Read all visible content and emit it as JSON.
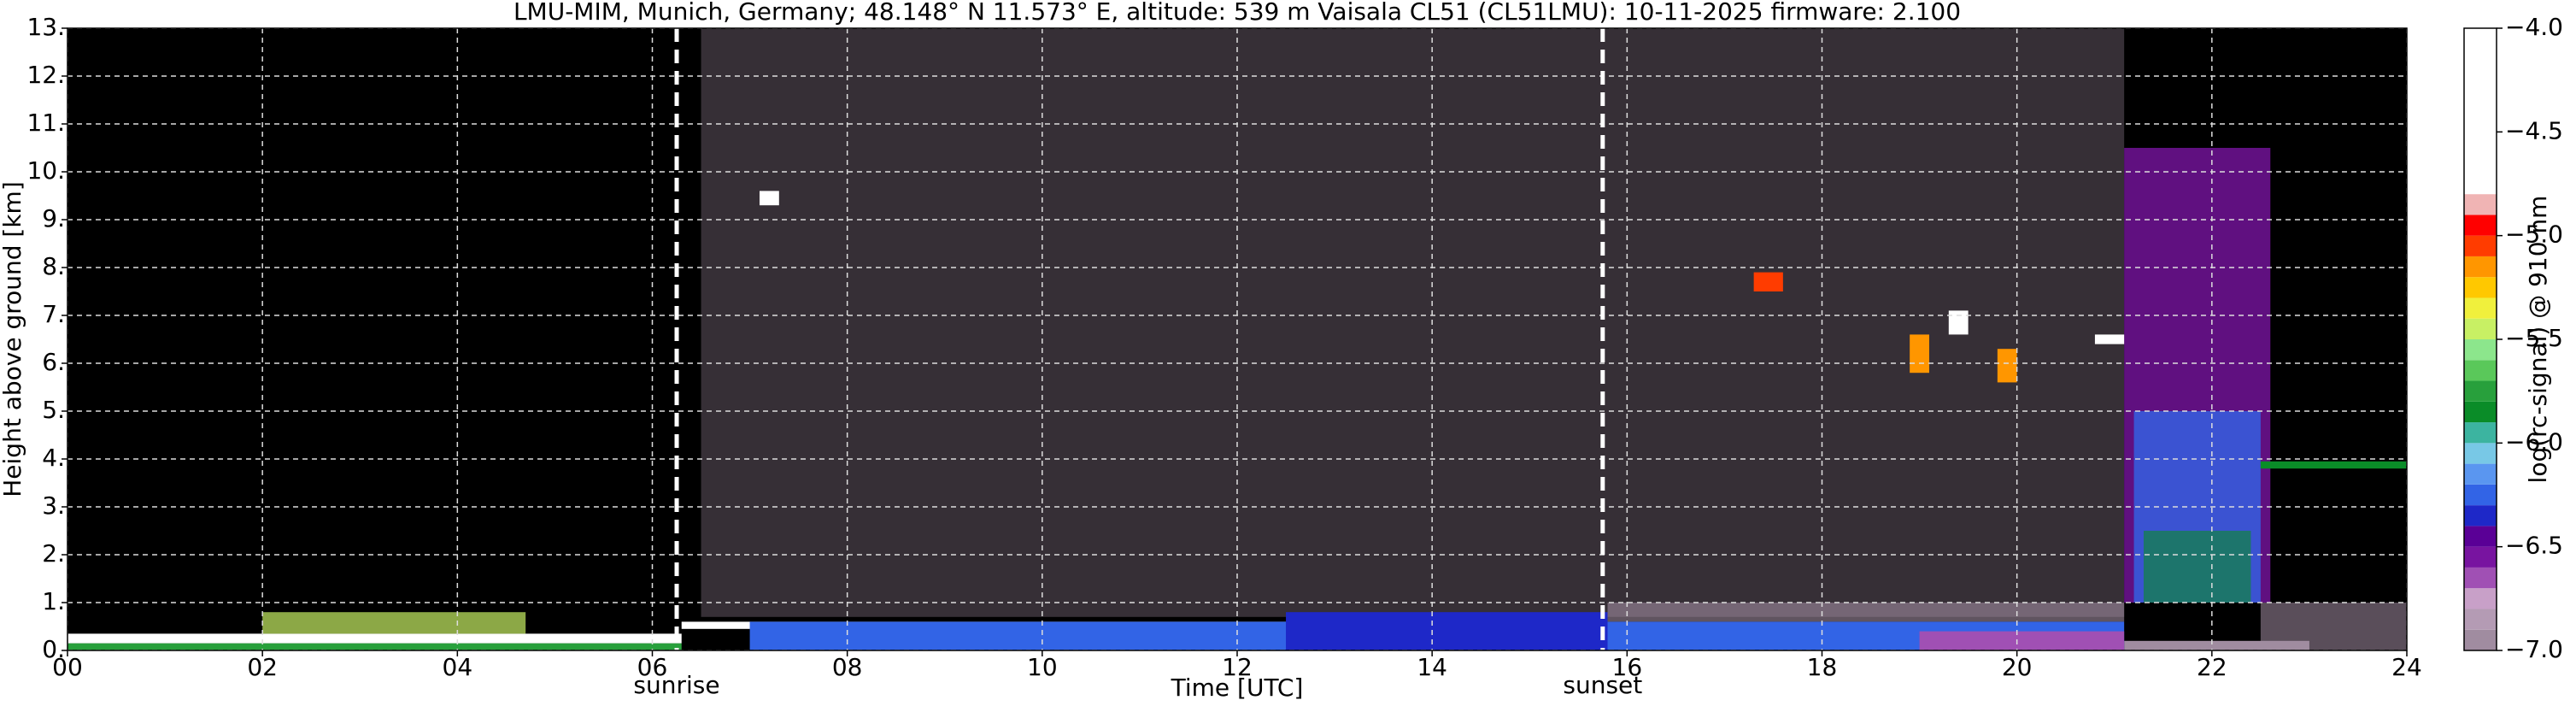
{
  "chart_data": {
    "type": "heatmap",
    "title": "LMU-MIM, Munich, Germany; 48.148° N 11.573° E, altitude: 539 m    Vaisala CL51 (CL51LMU): 10-11-2025    firmware: 2.100",
    "x_label": "Time [UTC]",
    "y_label": "Height above ground [km]",
    "xlim": [
      0,
      24
    ],
    "xticks": [
      {
        "value": 0,
        "label": "00"
      },
      {
        "value": 2,
        "label": "02"
      },
      {
        "value": 4,
        "label": "04"
      },
      {
        "value": 6,
        "label": "06"
      },
      {
        "value": 8,
        "label": "08"
      },
      10,
      12,
      14,
      16,
      18,
      20,
      22,
      24
    ],
    "ylim": [
      0,
      13
    ],
    "yticks": [
      {
        "value": 0,
        "label": "0."
      },
      {
        "value": 1,
        "label": "1."
      },
      {
        "value": 2,
        "label": "2."
      },
      {
        "value": 3,
        "label": "3."
      },
      {
        "value": 4,
        "label": "4."
      },
      {
        "value": 5,
        "label": "5."
      },
      {
        "value": 6,
        "label": "6."
      },
      {
        "value": 7,
        "label": "7."
      },
      {
        "value": 8,
        "label": "8."
      },
      {
        "value": 9,
        "label": "9."
      },
      {
        "value": 10,
        "label": "10."
      },
      {
        "value": 11,
        "label": "11."
      },
      {
        "value": 12,
        "label": "12."
      },
      {
        "value": 13,
        "label": "13."
      }
    ],
    "grid": true,
    "background": "#000000",
    "annotations": [
      {
        "text": "sunrise",
        "x": 6.25
      },
      {
        "text": "sunset",
        "x": 15.75
      }
    ],
    "colorbar": {
      "label": "log(rc-signal) @ 910 nm",
      "clim": [
        -7,
        -4
      ],
      "ticks": [
        {
          "value": -4,
          "label": "−4.0"
        },
        {
          "value": -4.5,
          "label": "−4.5"
        },
        {
          "value": -5,
          "label": "−5.0"
        },
        {
          "value": -5.5,
          "label": "−5.5"
        },
        {
          "value": -6,
          "label": "−6.0"
        },
        {
          "value": -6.5,
          "label": "−6.5"
        },
        {
          "value": -7,
          "label": "−7.0"
        }
      ],
      "levels": [
        -7.0,
        -6.9,
        -6.8,
        -6.7,
        -6.6,
        -6.5,
        -6.4,
        -6.3,
        -6.2,
        -6.1,
        -6.0,
        -5.9,
        -5.8,
        -5.7,
        -5.6,
        -5.5,
        -5.4,
        -5.3,
        -5.2,
        -5.1,
        -5.0,
        -4.9,
        -4.8,
        -4.0
      ],
      "colors": [
        "#a08ca0",
        "#b49bb4",
        "#c8a0c8",
        "#a050b4",
        "#7814a0",
        "#5a0096",
        "#1e28c8",
        "#3264e6",
        "#5a96f0",
        "#78c8e6",
        "#3cb4a0",
        "#0a8c28",
        "#28a03c",
        "#5ac85a",
        "#8ce68c",
        "#c8f064",
        "#f0f03c",
        "#ffc800",
        "#ff9600",
        "#ff3c00",
        "#ff0000",
        "#f0b4b4",
        "#ffffff"
      ]
    },
    "cells": [
      {
        "x": [
          6.5,
          21.1
        ],
        "y": [
          0.7,
          13
        ],
        "value": -6.8,
        "alpha": 0.3
      },
      {
        "x": [
          15.8,
          21.1
        ],
        "y": [
          0.6,
          1.0
        ],
        "value": -6.9,
        "alpha": 0.6
      },
      {
        "x": [
          21.1,
          22.6
        ],
        "y": [
          1.0,
          10.5
        ],
        "value": -6.5,
        "alpha": 0.8
      },
      {
        "x": [
          21.2,
          22.5
        ],
        "y": [
          1.0,
          5.0
        ],
        "value": -6.2,
        "alpha": 0.8
      },
      {
        "x": [
          21.3,
          22.4
        ],
        "y": [
          1.0,
          2.5
        ],
        "value": -5.8,
        "alpha": 0.6
      },
      {
        "x": [
          22.5,
          24
        ],
        "y": [
          0,
          1.0
        ],
        "value": -6.8,
        "alpha": 0.5
      },
      {
        "x": [
          21.1,
          23
        ],
        "y": [
          0,
          0.2
        ],
        "value": -6.9,
        "alpha": 1
      },
      {
        "x": [
          0,
          6.3
        ],
        "y": [
          0,
          0.15
        ],
        "value": -5.7,
        "alpha": 1
      },
      {
        "x": [
          0,
          6.3
        ],
        "y": [
          0.15,
          0.35
        ],
        "value": -4.5,
        "alpha": 1
      },
      {
        "x": [
          2,
          4.7
        ],
        "y": [
          0.35,
          0.8
        ],
        "value": -5.4,
        "alpha": 0.7
      },
      {
        "x": [
          6.3,
          12.5
        ],
        "y": [
          0.45,
          0.6
        ],
        "value": -4.5,
        "alpha": 1
      },
      {
        "x": [
          7,
          21.1
        ],
        "y": [
          0,
          0.6
        ],
        "value": -6.2,
        "alpha": 1
      },
      {
        "x": [
          12.5,
          15.8
        ],
        "y": [
          0,
          0.8
        ],
        "value": -6.3,
        "alpha": 1
      },
      {
        "x": [
          19,
          21.1
        ],
        "y": [
          0,
          0.4
        ],
        "value": -6.6,
        "alpha": 1
      },
      {
        "x": [
          17.3,
          17.6
        ],
        "y": [
          7.5,
          7.9
        ],
        "value": -5.0,
        "alpha": 1
      },
      {
        "x": [
          18.9,
          19.1
        ],
        "y": [
          5.8,
          6.6
        ],
        "value": -5.1,
        "alpha": 1
      },
      {
        "x": [
          19.3,
          19.5
        ],
        "y": [
          6.6,
          7.1
        ],
        "value": -4.5,
        "alpha": 1
      },
      {
        "x": [
          19.8,
          20.0
        ],
        "y": [
          5.6,
          6.3
        ],
        "value": -5.1,
        "alpha": 1
      },
      {
        "x": [
          20.8,
          21.1
        ],
        "y": [
          6.4,
          6.6
        ],
        "value": -4.5,
        "alpha": 1
      },
      {
        "x": [
          7.1,
          7.3
        ],
        "y": [
          9.3,
          9.6
        ],
        "value": -4.5,
        "alpha": 1
      },
      {
        "x": [
          22.5,
          24
        ],
        "y": [
          3.8,
          3.95
        ],
        "value": -5.8,
        "alpha": 1
      }
    ]
  }
}
